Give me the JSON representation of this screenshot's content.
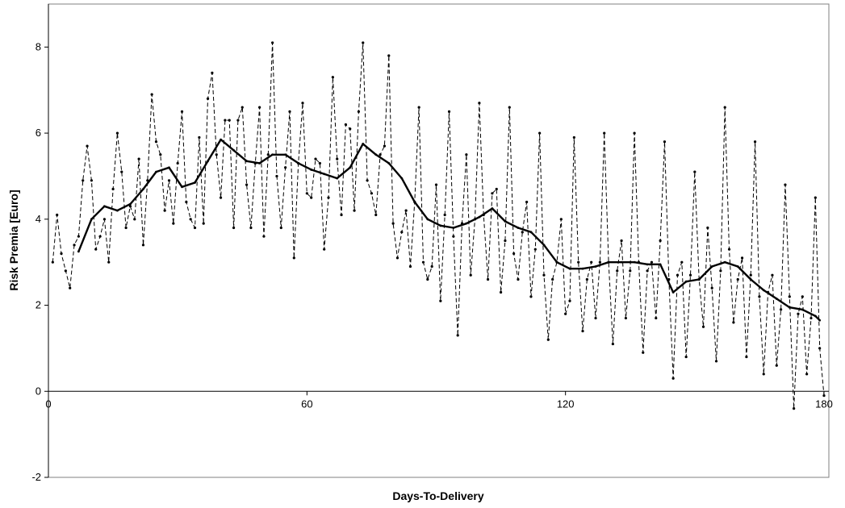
{
  "chart_data": {
    "type": "line",
    "title": "",
    "xlabel": "Days-To-Delivery",
    "ylabel": "Risk Premia [Euro]",
    "xlim": [
      0,
      180
    ],
    "ylim": [
      -2,
      9
    ],
    "x_ticks": [
      0,
      60,
      120,
      180
    ],
    "x_tick_labels": [
      "0",
      "60",
      "120",
      "180"
    ],
    "y_ticks": [
      -2,
      0,
      2,
      4,
      6,
      8
    ],
    "y_tick_labels": [
      "-2",
      "0",
      "2",
      "4",
      "6",
      "8"
    ],
    "grid": false,
    "legend": "none",
    "series": [
      {
        "style": "dashed-with-markers",
        "color": "#000000",
        "x": [
          1,
          2,
          3,
          4,
          5,
          6,
          7,
          8,
          9,
          10,
          11,
          12,
          13,
          14,
          15,
          16,
          17,
          18,
          19,
          20,
          21,
          22,
          23,
          24,
          25,
          26,
          27,
          28,
          29,
          30,
          31,
          32,
          33,
          34,
          35,
          36,
          37,
          38,
          39,
          40,
          41,
          42,
          43,
          44,
          45,
          46,
          47,
          48,
          49,
          50,
          51,
          52,
          53,
          54,
          55,
          56,
          57,
          58,
          59,
          60,
          61,
          62,
          63,
          64,
          65,
          66,
          67,
          68,
          69,
          70,
          71,
          72,
          73,
          74,
          75,
          76,
          77,
          78,
          79,
          80,
          81,
          82,
          83,
          84,
          85,
          86,
          87,
          88,
          89,
          90,
          91,
          92,
          93,
          94,
          95,
          96,
          97,
          98,
          99,
          100,
          101,
          102,
          103,
          104,
          105,
          106,
          107,
          108,
          109,
          110,
          111,
          112,
          113,
          114,
          115,
          116,
          117,
          118,
          119,
          120,
          121,
          122,
          123,
          124,
          125,
          126,
          127,
          128,
          129,
          130,
          131,
          132,
          133,
          134,
          135,
          136,
          137,
          138,
          139,
          140,
          141,
          142,
          143,
          144,
          145,
          146,
          147,
          148,
          149,
          150,
          151,
          152,
          153,
          154,
          155,
          156,
          157,
          158,
          159,
          160,
          161,
          162,
          163,
          164,
          165,
          166,
          167,
          168,
          169,
          170,
          171,
          172,
          173,
          174,
          175,
          176,
          177,
          178,
          179,
          180
        ],
        "y": [
          3.0,
          4.1,
          3.2,
          2.8,
          2.4,
          3.4,
          3.6,
          4.9,
          5.7,
          4.9,
          3.3,
          3.6,
          4.0,
          3.0,
          4.7,
          6.0,
          5.1,
          3.8,
          4.3,
          4.0,
          5.4,
          3.4,
          4.9,
          6.9,
          5.8,
          5.5,
          4.2,
          4.9,
          3.9,
          5.3,
          6.5,
          4.4,
          4.0,
          3.8,
          5.9,
          3.9,
          6.8,
          7.4,
          5.5,
          4.5,
          6.3,
          6.3,
          3.8,
          6.3,
          6.6,
          4.8,
          3.8,
          5.3,
          6.6,
          3.6,
          5.5,
          8.1,
          5.0,
          3.8,
          5.2,
          6.5,
          3.1,
          5.3,
          6.7,
          4.6,
          4.5,
          5.4,
          5.3,
          3.3,
          4.5,
          7.3,
          5.4,
          4.1,
          6.2,
          6.1,
          4.2,
          6.5,
          8.1,
          4.9,
          4.6,
          4.1,
          5.5,
          5.7,
          7.8,
          3.9,
          3.1,
          3.7,
          4.2,
          2.9,
          4.4,
          6.6,
          3.0,
          2.6,
          2.9,
          4.8,
          2.1,
          4.1,
          6.5,
          3.6,
          1.3,
          3.9,
          5.5,
          2.7,
          4.0,
          6.7,
          4.1,
          2.6,
          4.6,
          4.7,
          2.3,
          3.5,
          6.6,
          3.2,
          2.6,
          3.7,
          4.4,
          2.2,
          3.3,
          6.0,
          2.7,
          1.2,
          2.6,
          3.0,
          4.0,
          1.8,
          2.1,
          5.9,
          3.0,
          1.4,
          2.6,
          3.0,
          1.7,
          3.0,
          6.0,
          3.0,
          1.1,
          2.8,
          3.5,
          1.7,
          2.8,
          6.0,
          3.0,
          0.9,
          2.8,
          3.0,
          1.7,
          3.5,
          5.8,
          2.6,
          0.3,
          2.7,
          3.0,
          0.8,
          2.7,
          5.1,
          2.6,
          1.5,
          3.8,
          2.4,
          0.7,
          2.8,
          6.6,
          3.3,
          1.6,
          2.6,
          3.1,
          0.8,
          2.7,
          5.8,
          2.2,
          0.4,
          2.3,
          2.7,
          0.6,
          1.9,
          4.8,
          2.2,
          -0.4,
          1.8,
          2.2,
          0.4,
          1.7,
          4.5,
          1.0,
          -0.1
        ]
      },
      {
        "style": "solid-thick-with-markers",
        "color": "#000000",
        "x": [
          7,
          10,
          13,
          16,
          19,
          22,
          25,
          28,
          31,
          34,
          37,
          40,
          43,
          46,
          49,
          52,
          55,
          58,
          61,
          64,
          67,
          70,
          73,
          76,
          79,
          82,
          85,
          88,
          91,
          94,
          97,
          100,
          103,
          106,
          109,
          112,
          115,
          118,
          121,
          124,
          127,
          130,
          133,
          136,
          139,
          142,
          145,
          148,
          151,
          154,
          157,
          160,
          163,
          166,
          169,
          172,
          175,
          178,
          179
        ],
        "y": [
          3.25,
          4.0,
          4.3,
          4.2,
          4.35,
          4.7,
          5.1,
          5.2,
          4.75,
          4.85,
          5.35,
          5.85,
          5.6,
          5.35,
          5.3,
          5.5,
          5.5,
          5.3,
          5.15,
          5.05,
          4.95,
          5.2,
          5.75,
          5.5,
          5.3,
          4.95,
          4.4,
          4.0,
          3.85,
          3.8,
          3.9,
          4.05,
          4.25,
          3.95,
          3.8,
          3.7,
          3.4,
          3.0,
          2.85,
          2.85,
          2.9,
          3.0,
          3.0,
          3.0,
          2.95,
          2.95,
          2.3,
          2.55,
          2.6,
          2.9,
          3.0,
          2.9,
          2.6,
          2.35,
          2.15,
          1.95,
          1.9,
          1.75,
          1.65
        ]
      }
    ]
  }
}
